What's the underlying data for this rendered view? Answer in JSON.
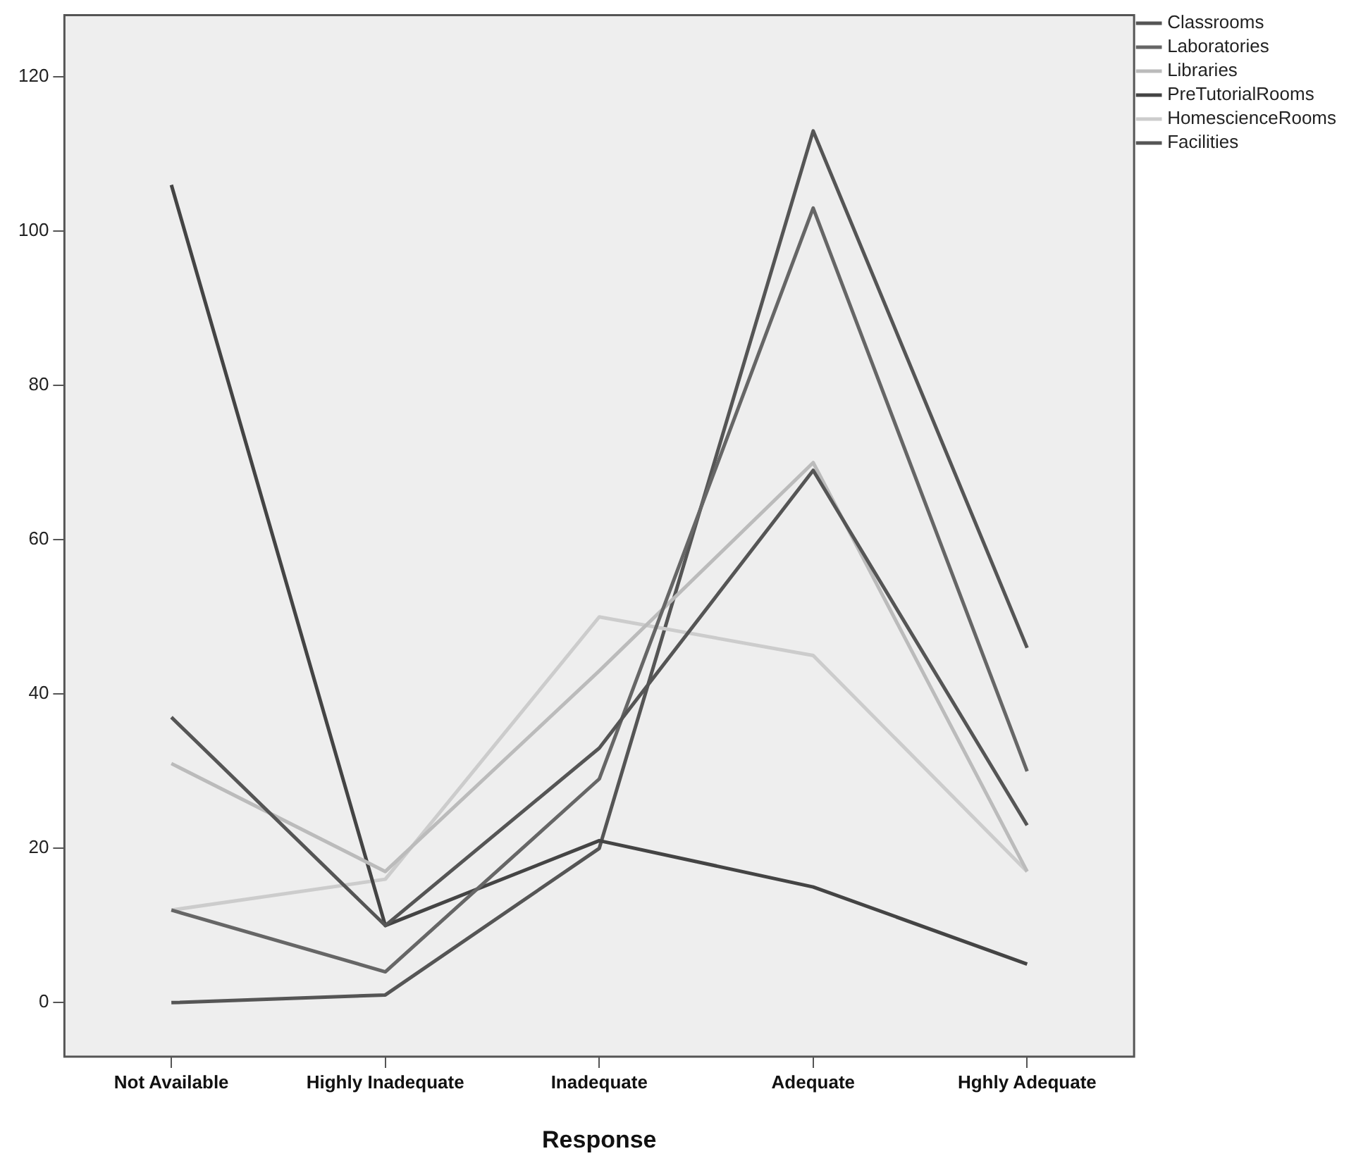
{
  "chart_data": {
    "type": "line",
    "xlabel": "Response",
    "categories": [
      "Not Available",
      "Highly Inadequate",
      "Inadequate",
      "Adequate",
      "Hghly Adequate"
    ],
    "series": [
      {
        "name": "Classrooms",
        "color": "#555555",
        "values": [
          37,
          10,
          33,
          69,
          23
        ]
      },
      {
        "name": "Laboratories",
        "color": "#666666",
        "values": [
          12,
          4,
          29,
          103,
          30
        ]
      },
      {
        "name": "Libraries",
        "color": "#bbbbbb",
        "values": [
          31,
          17,
          43,
          70,
          17
        ]
      },
      {
        "name": "PreTutorialRooms",
        "color": "#444444",
        "values": [
          106,
          10,
          21,
          15,
          5
        ]
      },
      {
        "name": "HomescienceRooms",
        "color": "#cccccc",
        "values": [
          12,
          16,
          50,
          45,
          17
        ]
      },
      {
        "name": "Facilities",
        "color": "#555555",
        "values": [
          0,
          1,
          20,
          113,
          46
        ]
      }
    ],
    "ylim": [
      -7,
      128
    ],
    "yticks": [
      0,
      20,
      40,
      60,
      80,
      100,
      120
    ],
    "grid": false,
    "legend": "right",
    "marker": "none"
  }
}
